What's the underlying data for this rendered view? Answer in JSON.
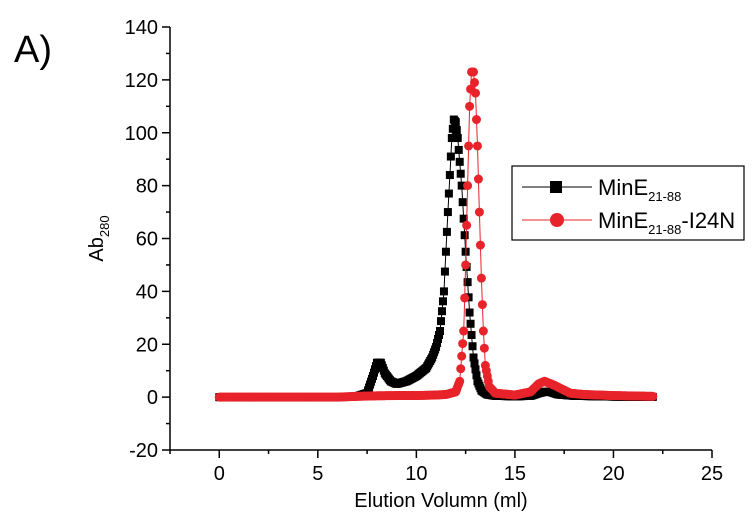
{
  "panel_label": "A)",
  "chart_data": {
    "type": "scatter",
    "xlabel": "Elution Volumn (ml)",
    "ylabel": {
      "main": "Ab",
      "sub": "280"
    },
    "xlim": [
      -2.5,
      25
    ],
    "ylim": [
      -20,
      140
    ],
    "x_ticks": [
      0,
      5,
      10,
      15,
      20,
      25
    ],
    "y_ticks": [
      -20,
      0,
      20,
      40,
      60,
      80,
      100,
      120,
      140
    ],
    "grid": false,
    "legend_position": "right",
    "series": [
      {
        "name_main": "MinE",
        "name_sub": "21-88",
        "name_suffix": "",
        "marker": "square",
        "color": "#000000",
        "points": [
          [
            0,
            0
          ],
          [
            2,
            0
          ],
          [
            4,
            0
          ],
          [
            6,
            0
          ],
          [
            7,
            0.3
          ],
          [
            7.5,
            1.5
          ],
          [
            7.8,
            8
          ],
          [
            8,
            13
          ],
          [
            8.2,
            13
          ],
          [
            8.4,
            9
          ],
          [
            8.7,
            6
          ],
          [
            9,
            5
          ],
          [
            9.5,
            6
          ],
          [
            10,
            8
          ],
          [
            10.5,
            11
          ],
          [
            10.8,
            15
          ],
          [
            11,
            19
          ],
          [
            11.2,
            25
          ],
          [
            11.4,
            40
          ],
          [
            11.6,
            70
          ],
          [
            11.8,
            98
          ],
          [
            11.9,
            105
          ],
          [
            12,
            104
          ],
          [
            12.1,
            98
          ],
          [
            12.3,
            80
          ],
          [
            12.5,
            55
          ],
          [
            12.7,
            32
          ],
          [
            12.9,
            15
          ],
          [
            13.1,
            6
          ],
          [
            13.3,
            2.5
          ],
          [
            13.6,
            1
          ],
          [
            14,
            0.5
          ],
          [
            15,
            0.3
          ],
          [
            15.8,
            0.5
          ],
          [
            16.2,
            1.5
          ],
          [
            16.5,
            2
          ],
          [
            16.8,
            2
          ],
          [
            17.2,
            1
          ],
          [
            18,
            0.5
          ],
          [
            20,
            0.2
          ],
          [
            22,
            0.1
          ]
        ]
      },
      {
        "name_main": "MinE",
        "name_sub": "21-88",
        "name_suffix": "-I24N",
        "marker": "circle",
        "color": "#e8232a",
        "points": [
          [
            0,
            0
          ],
          [
            2,
            0
          ],
          [
            4,
            0
          ],
          [
            6,
            0
          ],
          [
            7,
            0.3
          ],
          [
            8,
            0.5
          ],
          [
            9,
            0.6
          ],
          [
            10,
            0.6
          ],
          [
            11,
            0.8
          ],
          [
            11.5,
            1
          ],
          [
            12,
            2
          ],
          [
            12.2,
            6
          ],
          [
            12.4,
            25
          ],
          [
            12.5,
            50
          ],
          [
            12.6,
            80
          ],
          [
            12.7,
            110
          ],
          [
            12.8,
            123
          ],
          [
            12.9,
            123
          ],
          [
            13,
            115
          ],
          [
            13.1,
            95
          ],
          [
            13.2,
            70
          ],
          [
            13.3,
            45
          ],
          [
            13.4,
            25
          ],
          [
            13.5,
            12
          ],
          [
            13.7,
            4
          ],
          [
            14,
            1.5
          ],
          [
            15,
            0.8
          ],
          [
            15.8,
            2
          ],
          [
            16.2,
            5
          ],
          [
            16.5,
            6
          ],
          [
            17,
            4.5
          ],
          [
            17.4,
            3
          ],
          [
            17.8,
            1.5
          ],
          [
            18.5,
            1
          ],
          [
            20,
            0.6
          ],
          [
            22,
            0.3
          ]
        ]
      }
    ]
  }
}
